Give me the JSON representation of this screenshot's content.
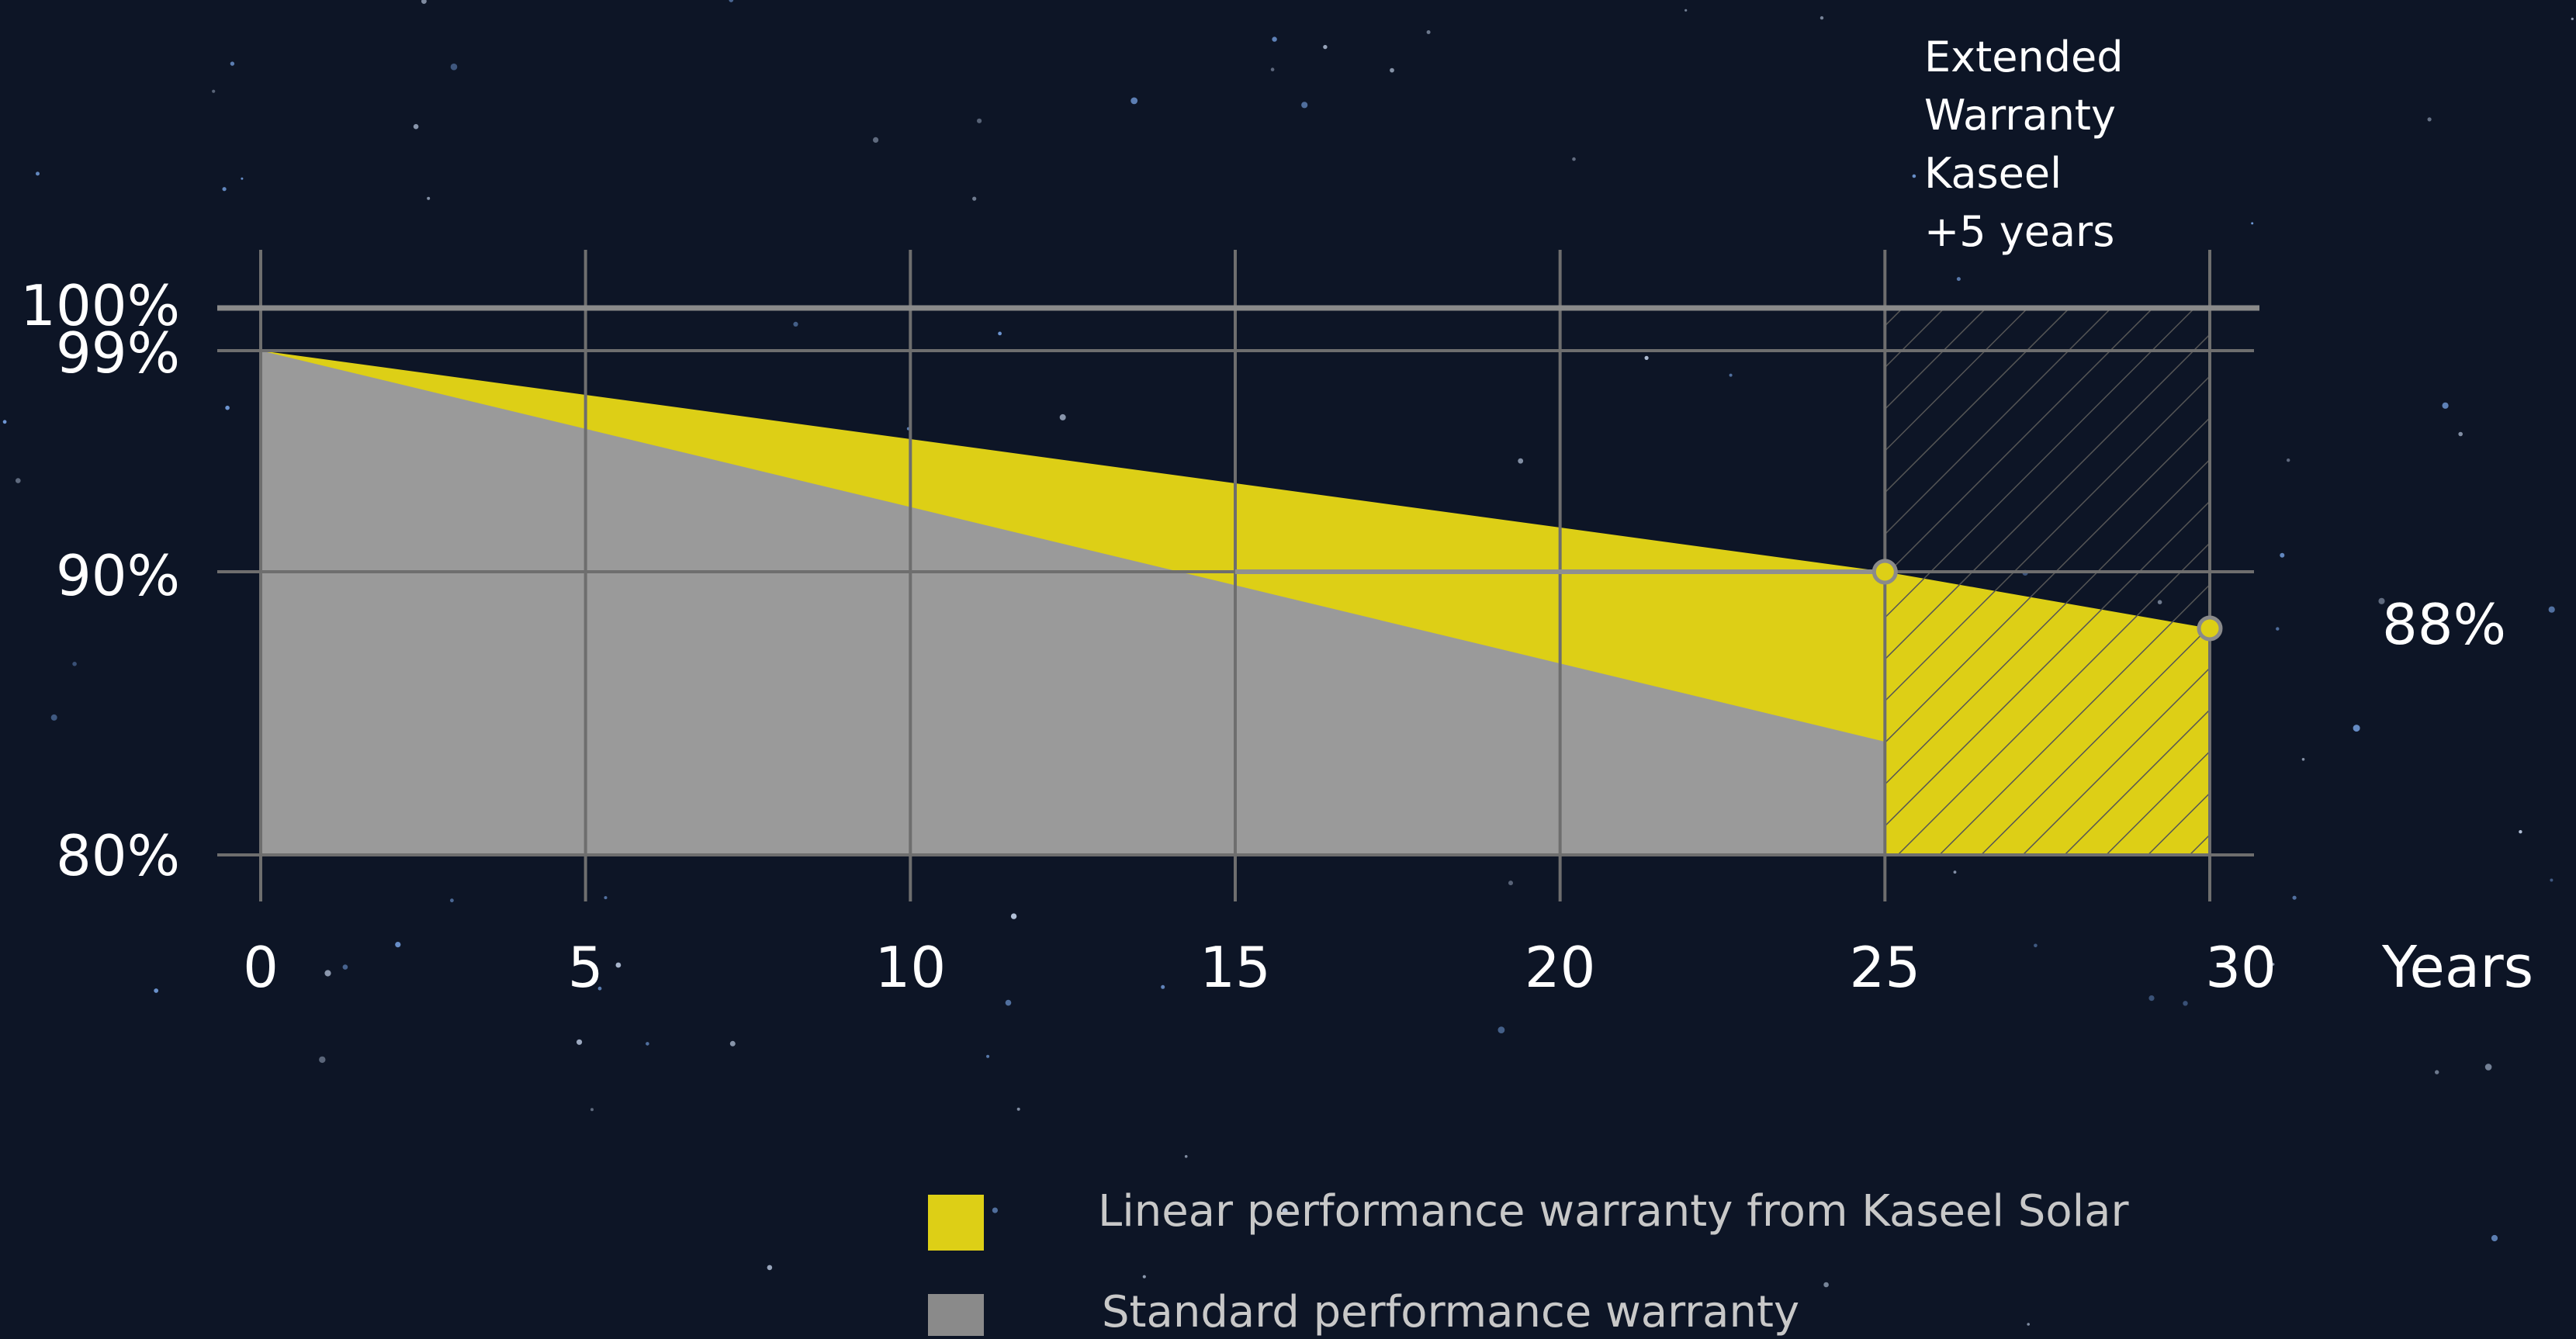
{
  "chart_data": {
    "type": "area",
    "x": [
      0,
      5,
      10,
      15,
      20,
      25,
      30
    ],
    "x_tick_labels": [
      "0",
      "5",
      "10",
      "15",
      "20",
      "25",
      "30"
    ],
    "y_tick_labels": [
      "100%",
      "99%",
      "90%",
      "80%"
    ],
    "y_ticks": [
      100,
      99,
      90,
      80
    ],
    "xlabel": "Years",
    "ylabel": "",
    "xlim": [
      0,
      30
    ],
    "ylim": [
      80,
      100
    ],
    "grid": true,
    "series": [
      {
        "name": "Linear performance warranty from Kaseel Solar",
        "color": "#ddcf16",
        "points": [
          [
            0,
            99
          ],
          [
            25,
            90
          ],
          [
            30,
            88
          ]
        ]
      },
      {
        "name": "Standard performance warranty",
        "color": "#9a9a9a",
        "points": [
          [
            0,
            99
          ],
          [
            25,
            84
          ]
        ]
      }
    ],
    "extended_region": {
      "from": 25,
      "to": 30,
      "pattern": "hatched"
    },
    "annotations": {
      "extended_warranty": [
        "Extended",
        "Warranty",
        "Kaseel",
        "+5 years"
      ],
      "end_value_label": "88%"
    },
    "legend": {
      "placement": "bottom-center",
      "items": [
        {
          "label": "Linear performance warranty from Kaseel Solar",
          "color": "#ddcf16"
        },
        {
          "label": "Standard performance warranty",
          "color": "#8a8a8a"
        }
      ]
    },
    "colors": {
      "background": "#0d1526",
      "gridline": "#6e6e6e",
      "text": "#ffffff",
      "legend_text": "#c8c8c8",
      "marker": "#ddcf16"
    }
  }
}
